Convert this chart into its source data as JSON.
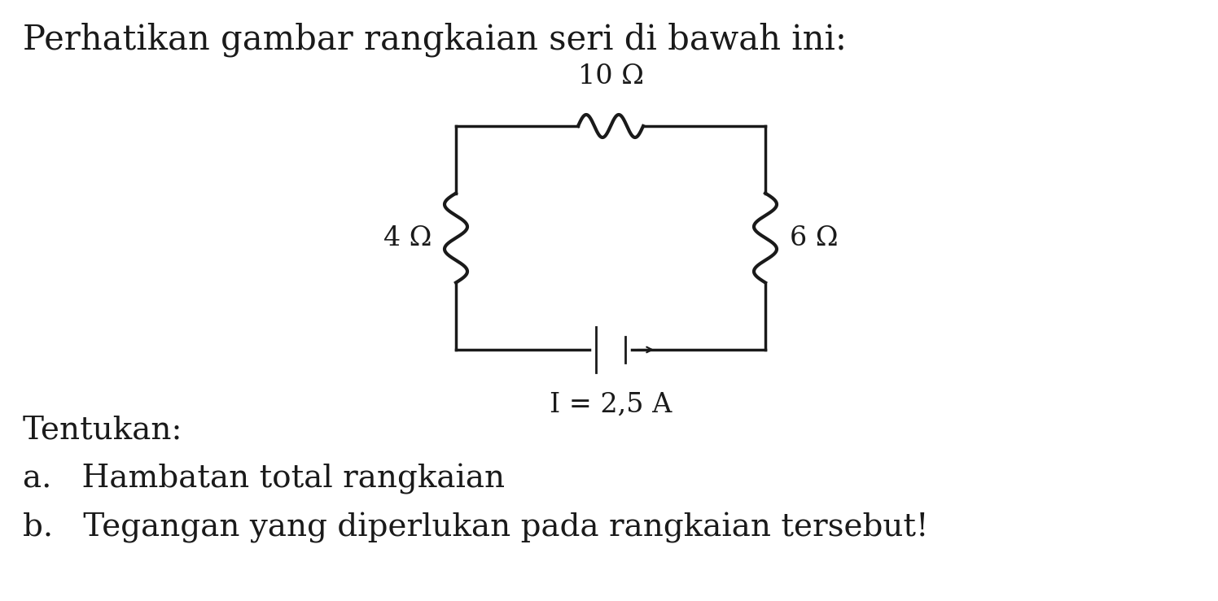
{
  "title": "Perhatikan gambar rangkaian seri di bawah ini:",
  "background_color": "#ffffff",
  "text_color": "#1a1a1a",
  "circuit": {
    "top_resistor_label": "10 Ω",
    "left_resistor_label": "4 Ω",
    "right_resistor_label": "6 Ω",
    "battery_label": "I = 2,5 A"
  },
  "questions": {
    "intro": "Tentukan:",
    "a": "a.   Hambatan total rangkaian",
    "b": "b.   Tegangan yang diperlukan pada rangkaian tersebut!"
  },
  "title_fontsize": 30,
  "label_fontsize": 24,
  "question_fontsize": 28
}
